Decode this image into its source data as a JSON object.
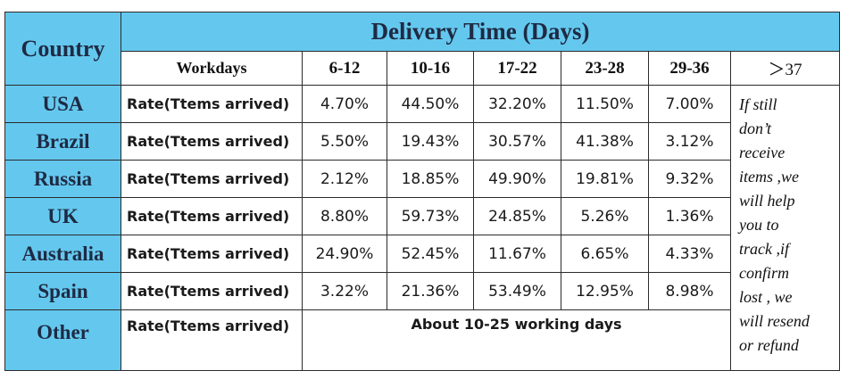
{
  "header": {
    "country_label": "Country",
    "delivery_label": "Delivery Time (Days)"
  },
  "columns": {
    "workdays_label": "Workdays",
    "ranges": [
      "6-12",
      "10-16",
      "17-22",
      "23-28",
      "29-36"
    ],
    "last": "＞37"
  },
  "rows": [
    {
      "country": "USA",
      "rate_label": "Rate(Ttems arrived)",
      "values": [
        "4.70%",
        "44.50%",
        "32.20%",
        "11.50%",
        "7.00%"
      ]
    },
    {
      "country": "Brazil",
      "rate_label": "Rate(Ttems arrived)",
      "values": [
        "5.50%",
        "19.43%",
        "30.57%",
        "41.38%",
        "3.12%"
      ]
    },
    {
      "country": "Russia",
      "rate_label": "Rate(Ttems arrived)",
      "values": [
        "2.12%",
        "18.85%",
        "49.90%",
        "19.81%",
        "9.32%"
      ]
    },
    {
      "country": "UK",
      "rate_label": "Rate(Ttems arrived)",
      "values": [
        "8.80%",
        "59.73%",
        "24.85%",
        "5.26%",
        "1.36%"
      ]
    },
    {
      "country": "Australia",
      "rate_label": "Rate(Ttems arrived)",
      "values": [
        "24.90%",
        "52.45%",
        "11.67%",
        "6.65%",
        "4.33%"
      ]
    },
    {
      "country": "Spain",
      "rate_label": "Rate(Ttems arrived)",
      "values": [
        "3.22%",
        "21.36%",
        "53.49%",
        "12.95%",
        "8.98%"
      ]
    }
  ],
  "other": {
    "country": "Other",
    "rate_label": "Rate(Ttems arrived)",
    "value": "About 10-25 working days"
  },
  "note_lines": [
    "If still",
    "don’t",
    "receive",
    "items ,we",
    "will help",
    "you to",
    "track ,if",
    "confirm",
    "lost , we",
    "will resend",
    "or refund"
  ],
  "colors": {
    "header_blue": "#64c8ee",
    "border": "#2b2b2b"
  }
}
